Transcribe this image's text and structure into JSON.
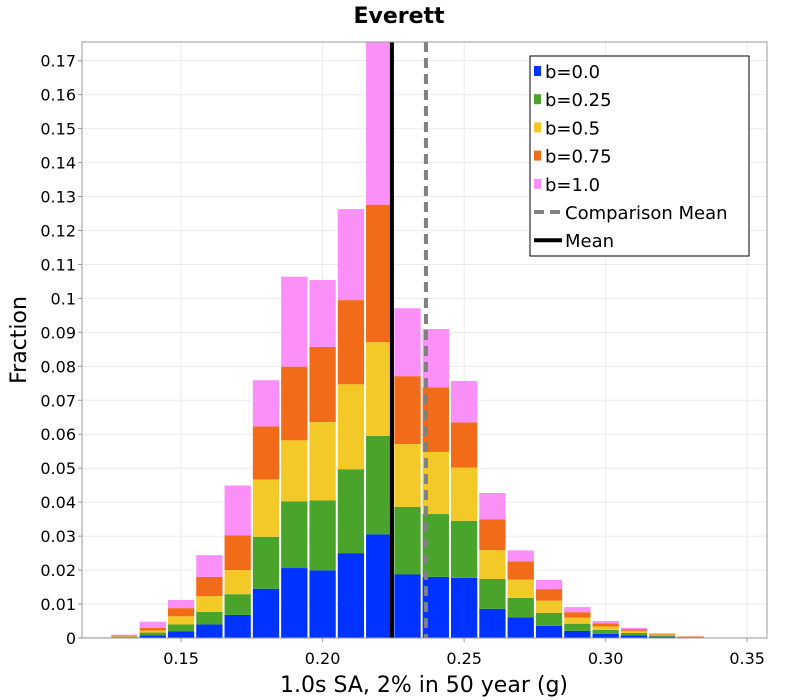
{
  "chart_data": {
    "type": "bar",
    "stacked": true,
    "title": "Everett",
    "xlabel": "1.0s SA, 2% in 50 year (g)",
    "ylabel": "Fraction",
    "xlim": [
      0.115,
      0.357
    ],
    "ylim": [
      0,
      0.1755
    ],
    "bin_width": 0.01,
    "x_ticks": [
      {
        "value": 0.15,
        "label": "0.15"
      },
      {
        "value": 0.2,
        "label": "0.20"
      },
      {
        "value": 0.25,
        "label": "0.25"
      },
      {
        "value": 0.3,
        "label": "0.30"
      },
      {
        "value": 0.35,
        "label": "0.35"
      }
    ],
    "y_ticks": [
      {
        "value": 0,
        "label": "0"
      },
      {
        "value": 0.01,
        "label": "0.01"
      },
      {
        "value": 0.02,
        "label": "0.02"
      },
      {
        "value": 0.03,
        "label": "0.03"
      },
      {
        "value": 0.04,
        "label": "0.04"
      },
      {
        "value": 0.05,
        "label": "0.05"
      },
      {
        "value": 0.06,
        "label": "0.06"
      },
      {
        "value": 0.07,
        "label": "0.07"
      },
      {
        "value": 0.08,
        "label": "0.08"
      },
      {
        "value": 0.09,
        "label": "0.09"
      },
      {
        "value": 0.1,
        "label": "0.1"
      },
      {
        "value": 0.11,
        "label": "0.11"
      },
      {
        "value": 0.12,
        "label": "0.12"
      },
      {
        "value": 0.13,
        "label": "0.13"
      },
      {
        "value": 0.14,
        "label": "0.14"
      },
      {
        "value": 0.15,
        "label": "0.15"
      },
      {
        "value": 0.16,
        "label": "0.16"
      },
      {
        "value": 0.17,
        "label": "0.17"
      }
    ],
    "grid": true,
    "legend_position": "top-right",
    "bins": [
      {
        "center": 0.12,
        "values": [
          0.0,
          0.0,
          0.0,
          0.0,
          0.0002
        ]
      },
      {
        "center": 0.13,
        "values": [
          0.0002,
          0.0002,
          0.0001,
          0.0002,
          0.0003
        ]
      },
      {
        "center": 0.14,
        "values": [
          0.0008,
          0.0008,
          0.0006,
          0.0008,
          0.0018
        ]
      },
      {
        "center": 0.15,
        "values": [
          0.002,
          0.002,
          0.0024,
          0.0024,
          0.0024
        ]
      },
      {
        "center": 0.16,
        "values": [
          0.004,
          0.0037,
          0.0046,
          0.0057,
          0.0064
        ]
      },
      {
        "center": 0.17,
        "values": [
          0.0068,
          0.0061,
          0.0071,
          0.0102,
          0.0147
        ]
      },
      {
        "center": 0.18,
        "values": [
          0.0145,
          0.0153,
          0.0169,
          0.0156,
          0.0136
        ]
      },
      {
        "center": 0.19,
        "values": [
          0.0206,
          0.0196,
          0.018,
          0.0217,
          0.0265
        ]
      },
      {
        "center": 0.2,
        "values": [
          0.0199,
          0.0206,
          0.0231,
          0.0221,
          0.0197
        ]
      },
      {
        "center": 0.21,
        "values": [
          0.025,
          0.0247,
          0.025,
          0.0248,
          0.0268
        ]
      },
      {
        "center": 0.22,
        "values": [
          0.0305,
          0.029,
          0.0276,
          0.0405,
          0.064
        ]
      },
      {
        "center": 0.23,
        "values": [
          0.0187,
          0.0199,
          0.0185,
          0.02,
          0.02
        ]
      },
      {
        "center": 0.24,
        "values": [
          0.018,
          0.0185,
          0.0183,
          0.019,
          0.0172
        ]
      },
      {
        "center": 0.25,
        "values": [
          0.0177,
          0.0168,
          0.0157,
          0.0133,
          0.0122
        ]
      },
      {
        "center": 0.26,
        "values": [
          0.0086,
          0.0088,
          0.0085,
          0.009,
          0.0078
        ]
      },
      {
        "center": 0.27,
        "values": [
          0.0061,
          0.0057,
          0.0054,
          0.0054,
          0.0032
        ]
      },
      {
        "center": 0.28,
        "values": [
          0.0036,
          0.0038,
          0.0036,
          0.0034,
          0.0027
        ]
      },
      {
        "center": 0.29,
        "values": [
          0.0021,
          0.0021,
          0.0018,
          0.0016,
          0.0015
        ]
      },
      {
        "center": 0.3,
        "values": [
          0.0012,
          0.0012,
          0.001,
          0.0009,
          0.0007
        ]
      },
      {
        "center": 0.31,
        "values": [
          0.0008,
          0.0007,
          0.0006,
          0.0005,
          0.0004
        ]
      },
      {
        "center": 0.32,
        "values": [
          0.0004,
          0.0003,
          0.0003,
          0.0002,
          0.0002
        ]
      },
      {
        "center": 0.33,
        "values": [
          0.0002,
          0.0001,
          0.0001,
          0.0001,
          0.0001
        ]
      },
      {
        "center": 0.34,
        "values": [
          0.0001,
          0.0,
          0.0,
          0.0,
          0.0
        ]
      }
    ],
    "series": [
      {
        "name": "b=0.0",
        "color": "#0033ff"
      },
      {
        "name": "b=0.25",
        "color": "#4aa32a"
      },
      {
        "name": "b=0.5",
        "color": "#f2c926"
      },
      {
        "name": "b=0.75",
        "color": "#f26b18"
      },
      {
        "name": "b=1.0",
        "color": "#fa90f7"
      }
    ],
    "vertical_lines": [
      {
        "name": "Comparison Mean",
        "x": 0.2365,
        "color": "#808080",
        "style": "dashed"
      },
      {
        "name": "Mean",
        "x": 0.2245,
        "color": "#000000",
        "style": "solid"
      }
    ],
    "colors": {
      "grid": "#ebebeb",
      "axis": "#999999",
      "background": "#ffffff"
    }
  }
}
